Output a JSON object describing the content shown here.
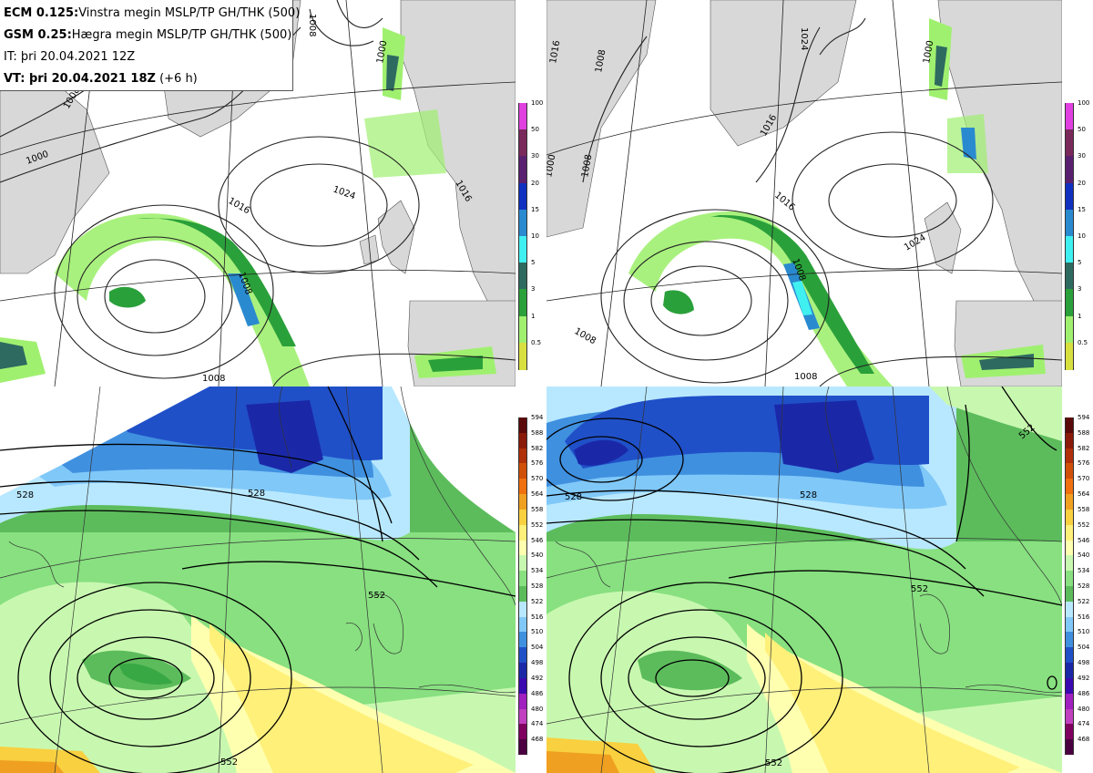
{
  "header": {
    "line1_model": "ECM 0.125:",
    "line1_desc": "Vinstra megin MSLP/TP GH/THK (500)",
    "line2_model": "GSM 0.25:",
    "line2_desc": "Hægra megin MSLP/TP GH/THK (500)",
    "line3": "IT: þri 20.04.2021 12Z",
    "line4_bold": "VT: þri 20.04.2021 18Z",
    "line4_rest": " (+6 h)"
  },
  "precip_colorbar": {
    "labels": [
      "100",
      "50",
      "30",
      "20",
      "15",
      "10",
      "5",
      "3",
      "1",
      "0.5"
    ],
    "colors": [
      "#e040e0",
      "#7a2a5a",
      "#5a2070",
      "#1030c0",
      "#2a8ad0",
      "#40f0f0",
      "#2e6a60",
      "#2aa03a",
      "#a0f070",
      "#d8e040"
    ]
  },
  "thickness_colorbar": {
    "labels": [
      "594",
      "588",
      "582",
      "576",
      "570",
      "564",
      "558",
      "552",
      "546",
      "540",
      "534",
      "528",
      "522",
      "516",
      "510",
      "504",
      "498",
      "492",
      "486",
      "480",
      "474",
      "468"
    ],
    "colors": [
      "#5a0a0a",
      "#8a1a0a",
      "#b0300a",
      "#d0500a",
      "#f07010",
      "#f0a020",
      "#f8d040",
      "#fff07a",
      "#ffffb0",
      "#c8f8b0",
      "#88e080",
      "#5cbc5c",
      "#b8e8ff",
      "#80c8f8",
      "#4090e0",
      "#2050c8",
      "#1a28a8",
      "#3a0ab0",
      "#a020c0",
      "#c040c0",
      "#800060",
      "#4a0040"
    ]
  },
  "maps": {
    "ecm_mslp": {
      "labels": [
        "1008",
        "1008",
        "1016",
        "1024",
        "1000",
        "1008",
        "1016",
        "1008",
        "1000"
      ]
    },
    "gsm_mslp": {
      "labels": [
        "1016",
        "1008",
        "1016",
        "1024",
        "1016",
        "1000",
        "1008",
        "1024",
        "1008",
        "1008",
        "1000",
        "1008"
      ]
    },
    "ecm_thk": {
      "labels": [
        "528",
        "528",
        "552",
        "552"
      ]
    },
    "gsm_thk": {
      "labels": [
        "528",
        "528",
        "552",
        "552",
        "552"
      ]
    }
  },
  "colors": {
    "land": "#d8d8d8",
    "sea": "#ffffff"
  }
}
